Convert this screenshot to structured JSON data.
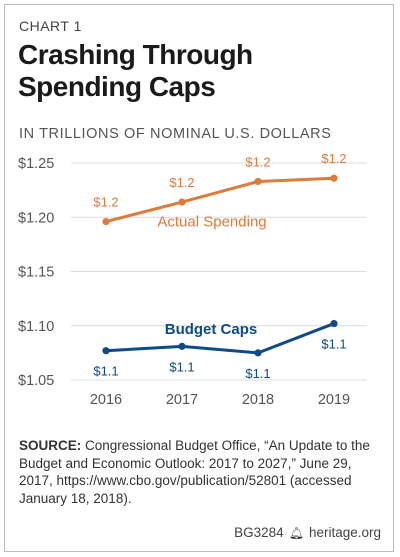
{
  "header": {
    "chart_label": "CHART 1",
    "title_line1": "Crashing Through",
    "title_line2": "Spending Caps",
    "units": "IN TRILLIONS OF NOMINAL U.S. DOLLARS"
  },
  "chart_data": {
    "type": "line",
    "x": [
      "2016",
      "2017",
      "2018",
      "2019"
    ],
    "ylim": [
      1.05,
      1.25
    ],
    "yticks": [
      "$1.25",
      "$1.20",
      "$1.15",
      "$1.10",
      "$1.05"
    ],
    "ytick_values": [
      1.25,
      1.2,
      1.15,
      1.1,
      1.05
    ],
    "series": [
      {
        "name": "Actual Spending",
        "values": [
          1.196,
          1.214,
          1.233,
          1.236
        ],
        "data_labels": [
          "$1.2",
          "$1.2",
          "$1.2",
          "$1.2"
        ],
        "color": "#e07a3a"
      },
      {
        "name": "Budget Caps",
        "values": [
          1.077,
          1.081,
          1.075,
          1.102
        ],
        "data_labels": [
          "$1.1",
          "$1.1",
          "$1.1",
          "$1.1"
        ],
        "color": "#0e4a8a"
      }
    ],
    "grid": "horizontal"
  },
  "source": {
    "label": "SOURCE:",
    "text": " Congressional Budget Office, “An Update to the Budget and Economic Outlook: 2017 to 2027,” June 29, 2017, https://www.cbo.gov/publication/52801 (accessed January 18, 2018)."
  },
  "footer": {
    "code": "BG3284",
    "bell_icon": "liberty-bell-icon",
    "site": "heritage.org"
  }
}
